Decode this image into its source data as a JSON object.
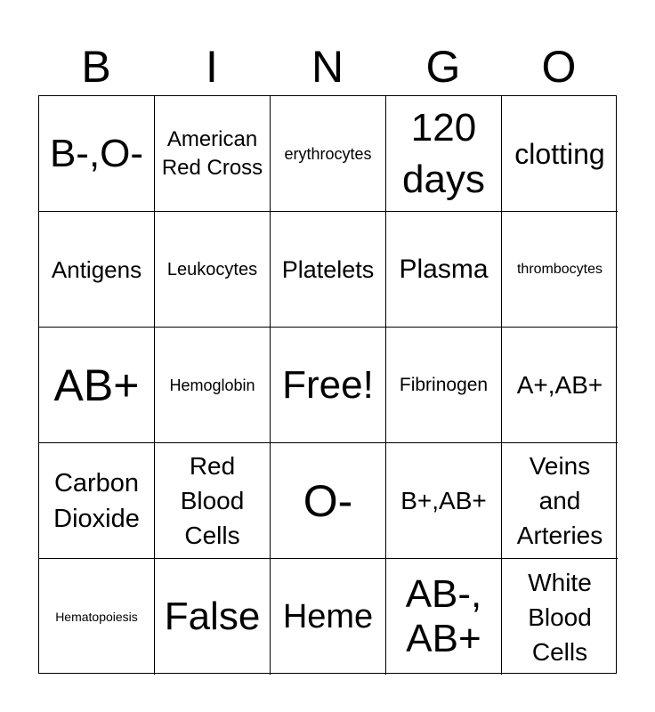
{
  "header": {
    "letters": [
      "B",
      "I",
      "N",
      "G",
      "O"
    ]
  },
  "cells": [
    "B-,O-",
    "American Red Cross",
    "erythrocytes",
    "120 days",
    "clotting",
    "Antigens",
    "Leukocytes",
    "Platelets",
    "Plasma",
    "thrombocytes",
    "AB+",
    "Hemoglobin",
    "Free!",
    "Fibrinogen",
    "A+,AB+",
    "Carbon Dioxide",
    "Red Blood Cells",
    "O-",
    "B+,AB+",
    "Veins and Arteries",
    "Hematopoiesis",
    "False",
    "Heme",
    "AB-, AB+",
    "White Blood Cells"
  ]
}
